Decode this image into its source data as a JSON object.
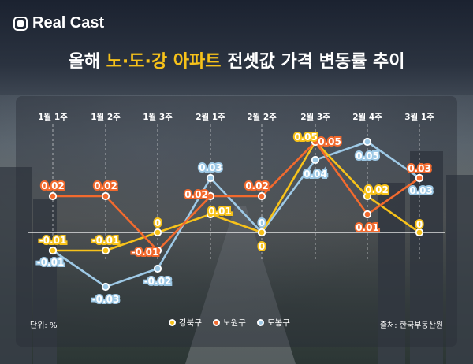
{
  "brand": {
    "name": "Real Cast"
  },
  "title": {
    "prefix": "올해",
    "highlight": "노·도·강 아파트",
    "suffix": "전셋값 가격 변동률 추이"
  },
  "footer": {
    "unit": "단위: %",
    "source": "출처: 한국부동산원"
  },
  "colors": {
    "강북구": "#f7c21a",
    "노원구": "#f26a2e",
    "도봉구": "#9ec9e6"
  },
  "chart_data": {
    "type": "line",
    "categories": [
      "1월 1주",
      "1월 2주",
      "1월 3주",
      "2월 1주",
      "2월 2주",
      "2월 3주",
      "2월 4주",
      "3월 1주"
    ],
    "series": [
      {
        "name": "강북구",
        "values": [
          -0.01,
          -0.01,
          0,
          0.01,
          0,
          0.05,
          0.02,
          0
        ],
        "labels": [
          "-0.01",
          "-0.01",
          "0",
          "0.01",
          "0",
          "0.05",
          "0.02",
          "0"
        ]
      },
      {
        "name": "노원구",
        "values": [
          0.02,
          0.02,
          -0.01,
          0.02,
          0.02,
          0.05,
          0.01,
          0.03
        ],
        "labels": [
          "0.02",
          "0.02",
          "-0.01",
          "0.02",
          "0.02",
          "0.05",
          "0.01",
          "0.03"
        ]
      },
      {
        "name": "도봉구",
        "values": [
          -0.01,
          -0.03,
          -0.02,
          0.03,
          0,
          0.04,
          0.05,
          0.03
        ],
        "labels": [
          "-0.01",
          "-0.03",
          "-0.02",
          "0.03",
          "0",
          "0.04",
          "0.05",
          "0.03"
        ]
      }
    ],
    "ylim": [
      -0.04,
      0.06
    ],
    "grid": false,
    "legend_position": "bottom-center"
  }
}
